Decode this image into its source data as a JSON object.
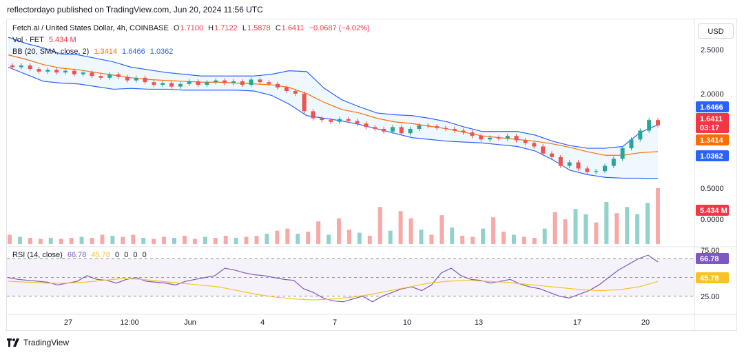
{
  "header": {
    "published": "reflectordayo published on TradingView.com, Jun 20, 2024 11:56 UTC"
  },
  "legend": {
    "symbol": "Fetch.ai / United States Dollar, 4h, COINBASE",
    "open_label": "O",
    "open": "1.7100",
    "high_label": "H",
    "high": "1.7122",
    "low_label": "L",
    "low": "1.5878",
    "close_label": "C",
    "close": "1.6411",
    "change": "−0.0687 (−4.02%)",
    "vol_label": "Vol · FET",
    "vol_value": "5.434 M",
    "bb_label": "BB (20, SMA, close, 2)",
    "bb_basis": "1.3414",
    "bb_upper": "1.6466",
    "bb_lower": "1.0362",
    "rsi_label": "RSI (14, close)",
    "rsi_value": "66.78",
    "rsi_ma": "45.78",
    "rsi_extra": [
      "0",
      "0",
      "0",
      "0"
    ]
  },
  "price_scale": {
    "currency_button": "USD",
    "ticks": [
      "2.5000",
      "2.0000",
      "0.5000",
      "0.0000"
    ],
    "badges": {
      "bb_upper": "1.6466",
      "price": "1.6411",
      "countdown": "03:17",
      "bb_basis": "1.3414",
      "bb_lower": "1.0362",
      "volume": "5.434 M"
    }
  },
  "rsi_scale": {
    "ticks": [
      "75.00",
      "25.00"
    ],
    "badges": {
      "rsi": "66.78",
      "rsi_ma": "45.78"
    },
    "levels": [
      70,
      50,
      30
    ]
  },
  "time_axis": [
    "27",
    "12:00",
    "Jun",
    "4",
    "7",
    "10",
    "13",
    "17",
    "20"
  ],
  "footer": {
    "brand": "TradingView"
  },
  "colors": {
    "up": "#26a69a",
    "down": "#ef5350",
    "bb_band": "#2962ff",
    "bb_basis": "#ff6d00",
    "rsi": "#7e57c2",
    "rsi_ma": "#f7c325",
    "badge_red": "#f23645",
    "badge_blue": "#2962ff",
    "badge_orange": "#ff6d00"
  },
  "chart_data": {
    "type": "candlestick",
    "symbol": "FETUSD",
    "interval": "4h",
    "price_series": {
      "name": "Fetch.ai / United States Dollar",
      "close_path": [
        2.3,
        2.32,
        2.28,
        2.25,
        2.27,
        2.24,
        2.26,
        2.22,
        2.24,
        2.2,
        2.18,
        2.22,
        2.19,
        2.15,
        2.18,
        2.13,
        2.1,
        2.12,
        2.08,
        2.11,
        2.14,
        2.1,
        2.13,
        2.15,
        2.12,
        2.14,
        2.1,
        2.16,
        2.13,
        2.11,
        2.07,
        2.03,
        2.0,
        1.8,
        1.72,
        1.7,
        1.68,
        1.71,
        1.69,
        1.66,
        1.62,
        1.6,
        1.57,
        1.62,
        1.55,
        1.6,
        1.64,
        1.63,
        1.61,
        1.6,
        1.58,
        1.56,
        1.52,
        1.48,
        1.5,
        1.49,
        1.52,
        1.47,
        1.44,
        1.4,
        1.32,
        1.28,
        1.18,
        1.22,
        1.15,
        1.11,
        1.12,
        1.18,
        1.26,
        1.38,
        1.48,
        1.58,
        1.7,
        1.6411
      ]
    },
    "bollinger": {
      "basis": [
        2.44,
        2.39,
        2.33,
        2.29,
        2.27,
        2.24,
        2.21,
        2.18,
        2.16,
        2.15,
        2.14,
        2.13,
        2.13,
        2.12,
        2.11,
        2.1,
        2.07,
        2.0,
        1.9,
        1.82,
        1.78,
        1.72,
        1.68,
        1.66,
        1.63,
        1.6,
        1.56,
        1.52,
        1.5,
        1.48,
        1.46,
        1.43,
        1.39,
        1.34,
        1.3,
        1.3,
        1.33,
        1.3414
      ],
      "upper": [
        2.64,
        2.57,
        2.52,
        2.45,
        2.44,
        2.4,
        2.36,
        2.3,
        2.27,
        2.24,
        2.22,
        2.2,
        2.2,
        2.2,
        2.2,
        2.22,
        2.26,
        2.25,
        2.06,
        1.93,
        1.85,
        1.78,
        1.76,
        1.75,
        1.72,
        1.68,
        1.62,
        1.57,
        1.57,
        1.57,
        1.53,
        1.46,
        1.41,
        1.38,
        1.38,
        1.4,
        1.56,
        1.6466
      ],
      "lower": [
        2.3,
        2.22,
        2.14,
        2.12,
        2.11,
        2.08,
        2.05,
        2.06,
        2.05,
        2.05,
        2.04,
        2.04,
        2.04,
        2.04,
        2.03,
        1.98,
        1.88,
        1.75,
        1.72,
        1.69,
        1.65,
        1.6,
        1.55,
        1.5,
        1.48,
        1.46,
        1.45,
        1.44,
        1.42,
        1.4,
        1.35,
        1.25,
        1.13,
        1.08,
        1.05,
        1.04,
        1.04,
        1.0362
      ]
    },
    "volume": {
      "unit": "M",
      "values": [
        0.9,
        0.7,
        0.6,
        0.5,
        0.6,
        0.5,
        0.6,
        0.7,
        0.6,
        0.9,
        0.8,
        0.7,
        0.9,
        0.6,
        0.5,
        0.7,
        0.6,
        0.8,
        0.5,
        0.7,
        0.6,
        0.8,
        0.6,
        0.7,
        0.8,
        1.0,
        1.3,
        1.5,
        1.0,
        1.2,
        2.2,
        0.9,
        2.5,
        1.4,
        1.1,
        0.8,
        3.6,
        1.3,
        3.2,
        2.5,
        1.4,
        0.9,
        2.8,
        1.6,
        0.8,
        0.7,
        1.5,
        2.6,
        1.2,
        0.9,
        0.7,
        0.6,
        1.5,
        3.1,
        2.4,
        3.4,
        2.9,
        2.1,
        4.1,
        3.0,
        3.6,
        2.9,
        4.0,
        5.434
      ],
      "colors": "down/up per candle"
    },
    "rsi": {
      "name": "RSI (14, close)",
      "ylim": [
        15,
        80
      ],
      "values": [
        50,
        48,
        47,
        46,
        45,
        42,
        44,
        46,
        52,
        48,
        47,
        44,
        48,
        50,
        46,
        45,
        44,
        42,
        46,
        48,
        50,
        52,
        60,
        58,
        55,
        53,
        52,
        50,
        48,
        47,
        38,
        34,
        28,
        25,
        24,
        27,
        30,
        24,
        30,
        34,
        38,
        40,
        36,
        42,
        55,
        60,
        52,
        48,
        47,
        44,
        46,
        48,
        43,
        40,
        38,
        34,
        30,
        28,
        32,
        36,
        42,
        50,
        58,
        64,
        70,
        74,
        66.78
      ],
      "ma_values": [
        46,
        45,
        44,
        44,
        45,
        47,
        49,
        48,
        46,
        44,
        42,
        40,
        36,
        32,
        29,
        27,
        26,
        27,
        29,
        32,
        36,
        40,
        44,
        46,
        47,
        46,
        45,
        43,
        41,
        39,
        37,
        36,
        37,
        40,
        45.78
      ],
      "levels": [
        70,
        50,
        30
      ]
    },
    "x_ticks": [
      "27",
      "12:00",
      "Jun",
      "4",
      "7",
      "10",
      "13",
      "17",
      "20"
    ]
  }
}
